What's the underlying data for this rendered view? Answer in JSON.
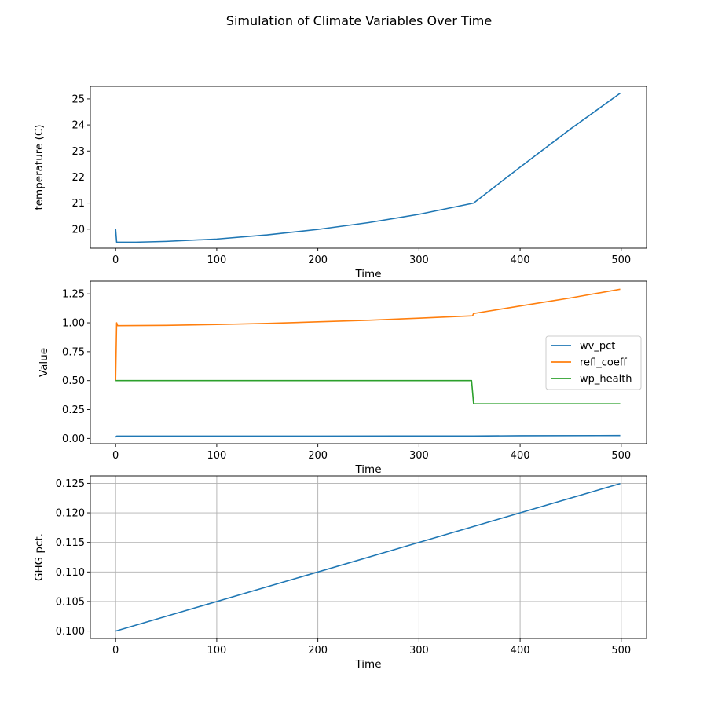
{
  "figure": {
    "title": "Simulation of Climate Variables Over Time"
  },
  "colors": {
    "blue": "#1f77b4",
    "orange": "#ff7f0e",
    "green": "#2ca02c",
    "grid": "#b0b0b0",
    "axes": "#000000"
  },
  "chart_data": [
    {
      "type": "line",
      "xlabel": "Time",
      "ylabel": "temperature (C)",
      "xlim": [
        -25,
        525
      ],
      "ylim": [
        19.27,
        25.48
      ],
      "xticks": [
        0,
        100,
        200,
        300,
        400,
        500
      ],
      "yticks": [
        20,
        21,
        22,
        23,
        24,
        25
      ],
      "grid": false,
      "legend": null,
      "series": [
        {
          "name": "temperature",
          "color_key": "blue",
          "x": [
            0,
            1,
            20,
            50,
            100,
            150,
            200,
            250,
            300,
            354,
            400,
            450,
            499
          ],
          "y": [
            20.0,
            19.5,
            19.5,
            19.53,
            19.62,
            19.78,
            19.99,
            20.25,
            20.57,
            21.0,
            22.38,
            23.85,
            25.22
          ]
        }
      ]
    },
    {
      "type": "line",
      "xlabel": "Time",
      "ylabel": "Value",
      "xlim": [
        -25,
        525
      ],
      "ylim": [
        -0.045,
        1.36
      ],
      "xticks": [
        0,
        100,
        200,
        300,
        400,
        500
      ],
      "yticks": [
        0.0,
        0.25,
        0.5,
        0.75,
        1.0,
        1.25
      ],
      "ytick_labels": [
        "0.00",
        "0.25",
        "0.50",
        "0.75",
        "1.00",
        "1.25"
      ],
      "grid": false,
      "legend": "center-right",
      "series": [
        {
          "name": "wv_pct",
          "color_key": "blue",
          "x": [
            0,
            1,
            100,
            200,
            300,
            354,
            400,
            499
          ],
          "y": [
            0.01,
            0.02,
            0.02,
            0.02,
            0.021,
            0.021,
            0.023,
            0.025
          ]
        },
        {
          "name": "refl_coeff",
          "color_key": "orange",
          "x": [
            0,
            1,
            2,
            50,
            100,
            150,
            200,
            250,
            300,
            353,
            354,
            400,
            450,
            499
          ],
          "y": [
            0.5,
            1.0,
            0.975,
            0.978,
            0.985,
            0.995,
            1.008,
            1.022,
            1.04,
            1.06,
            1.08,
            1.145,
            1.215,
            1.29
          ]
        },
        {
          "name": "wp_health",
          "color_key": "green",
          "x": [
            0,
            352,
            354,
            499
          ],
          "y": [
            0.5,
            0.5,
            0.3,
            0.3
          ]
        }
      ]
    },
    {
      "type": "line",
      "xlabel": "Time",
      "ylabel": "GHG pct.",
      "xlim": [
        -25,
        525
      ],
      "ylim": [
        0.09875,
        0.12625
      ],
      "xticks": [
        0,
        100,
        200,
        300,
        400,
        500
      ],
      "yticks": [
        0.1,
        0.105,
        0.11,
        0.115,
        0.12,
        0.125
      ],
      "ytick_labels": [
        "0.100",
        "0.105",
        "0.110",
        "0.115",
        "0.120",
        "0.125"
      ],
      "grid": true,
      "legend": null,
      "series": [
        {
          "name": "GHG pct.",
          "color_key": "blue",
          "x": [
            0,
            499
          ],
          "y": [
            0.1,
            0.12495
          ]
        }
      ]
    }
  ]
}
